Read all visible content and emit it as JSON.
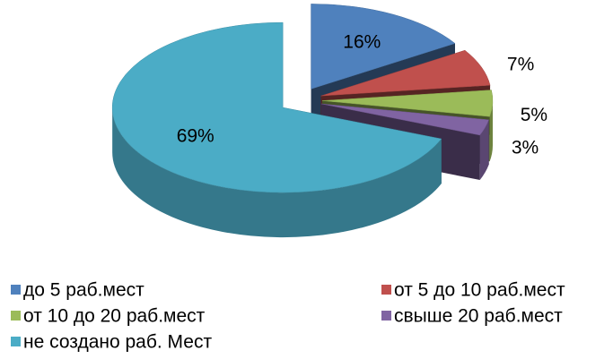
{
  "chart_data": {
    "type": "pie",
    "categories": [
      "до 5 раб.мест",
      "от 5 до 10 раб.мест",
      "от 10 до 20 раб.мест",
      "свыше 20 раб.мест",
      "не создано раб. Мест"
    ],
    "values": [
      16,
      7,
      5,
      3,
      69
    ],
    "value_labels": [
      "16%",
      "7%",
      "5%",
      "3%",
      "69%"
    ],
    "colors": [
      "#4f81bd",
      "#c0504d",
      "#9bbb59",
      "#8064a2",
      "#4bacc6"
    ],
    "legend": "bottom"
  }
}
